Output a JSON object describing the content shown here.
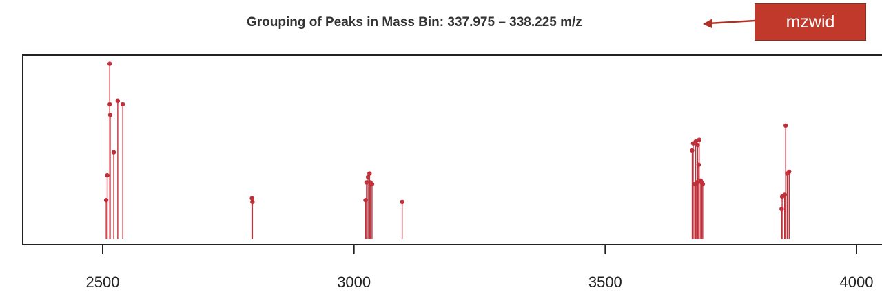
{
  "callout": {
    "label": "mzwid",
    "color": "#c0392b"
  },
  "chart_data": {
    "type": "line",
    "subtype": "stem",
    "title": "Grouping of Peaks in Mass Bin: 337.975 – 338.225 m/z",
    "xlabel": "",
    "ylabel": "",
    "xlim": [
      2360,
      4000
    ],
    "ylim": [
      0,
      1
    ],
    "x_ticks": [
      2500,
      3000,
      3500,
      4000
    ],
    "x_tick_labels": [
      "2500",
      "3000",
      "3500",
      "4000"
    ],
    "grid": false,
    "color": "#c0303a",
    "series": [
      {
        "points": [
          {
            "x": 2507,
            "y": 0.22
          },
          {
            "x": 2509,
            "y": 0.36
          },
          {
            "x": 2514,
            "y": 0.99
          },
          {
            "x": 2514,
            "y": 0.76
          },
          {
            "x": 2515,
            "y": 0.7
          },
          {
            "x": 2522,
            "y": 0.49
          },
          {
            "x": 2530,
            "y": 0.78
          },
          {
            "x": 2540,
            "y": 0.76
          },
          {
            "x": 2797,
            "y": 0.23
          },
          {
            "x": 2798,
            "y": 0.21
          },
          {
            "x": 3023,
            "y": 0.22
          },
          {
            "x": 3025,
            "y": 0.32
          },
          {
            "x": 3028,
            "y": 0.35
          },
          {
            "x": 3031,
            "y": 0.37
          },
          {
            "x": 3033,
            "y": 0.32
          },
          {
            "x": 3036,
            "y": 0.31
          },
          {
            "x": 3096,
            "y": 0.21
          },
          {
            "x": 3673,
            "y": 0.5
          },
          {
            "x": 3675,
            "y": 0.54
          },
          {
            "x": 3678,
            "y": 0.31
          },
          {
            "x": 3680,
            "y": 0.55
          },
          {
            "x": 3682,
            "y": 0.32
          },
          {
            "x": 3684,
            "y": 0.53
          },
          {
            "x": 3686,
            "y": 0.42
          },
          {
            "x": 3687,
            "y": 0.56
          },
          {
            "x": 3690,
            "y": 0.33
          },
          {
            "x": 3692,
            "y": 0.32
          },
          {
            "x": 3694,
            "y": 0.31
          },
          {
            "x": 3851,
            "y": 0.17
          },
          {
            "x": 3852,
            "y": 0.24
          },
          {
            "x": 3857,
            "y": 0.25
          },
          {
            "x": 3859,
            "y": 0.64
          },
          {
            "x": 3862,
            "y": 0.37
          },
          {
            "x": 3866,
            "y": 0.38
          }
        ]
      }
    ]
  }
}
